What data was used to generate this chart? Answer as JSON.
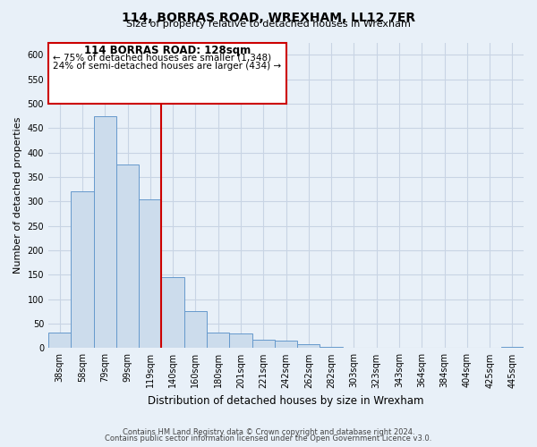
{
  "title": "114, BORRAS ROAD, WREXHAM, LL12 7ER",
  "subtitle": "Size of property relative to detached houses in Wrexham",
  "xlabel": "Distribution of detached houses by size in Wrexham",
  "ylabel": "Number of detached properties",
  "bar_labels": [
    "38sqm",
    "58sqm",
    "79sqm",
    "99sqm",
    "119sqm",
    "140sqm",
    "160sqm",
    "180sqm",
    "201sqm",
    "221sqm",
    "242sqm",
    "262sqm",
    "282sqm",
    "303sqm",
    "323sqm",
    "343sqm",
    "364sqm",
    "384sqm",
    "404sqm",
    "425sqm",
    "445sqm"
  ],
  "bar_values": [
    32,
    320,
    475,
    375,
    305,
    145,
    75,
    32,
    30,
    17,
    15,
    8,
    3,
    1,
    0,
    0,
    0,
    0,
    0,
    0,
    2
  ],
  "bar_color": "#ccdcec",
  "bar_edge_color": "#6699cc",
  "red_line_x": 4.5,
  "annotation_title": "114 BORRAS ROAD: 128sqm",
  "annotation_line1": "← 75% of detached houses are smaller (1,348)",
  "annotation_line2": "24% of semi-detached houses are larger (434) →",
  "annotation_box_color": "#ffffff",
  "annotation_box_edge": "#cc0000",
  "line_color": "#cc0000",
  "ylim": [
    0,
    625
  ],
  "yticks": [
    0,
    50,
    100,
    150,
    200,
    250,
    300,
    350,
    400,
    450,
    500,
    550,
    600
  ],
  "footer1": "Contains HM Land Registry data © Crown copyright and database right 2024.",
  "footer2": "Contains public sector information licensed under the Open Government Licence v3.0.",
  "grid_color": "#c8d4e4",
  "bg_color": "#e8f0f8"
}
